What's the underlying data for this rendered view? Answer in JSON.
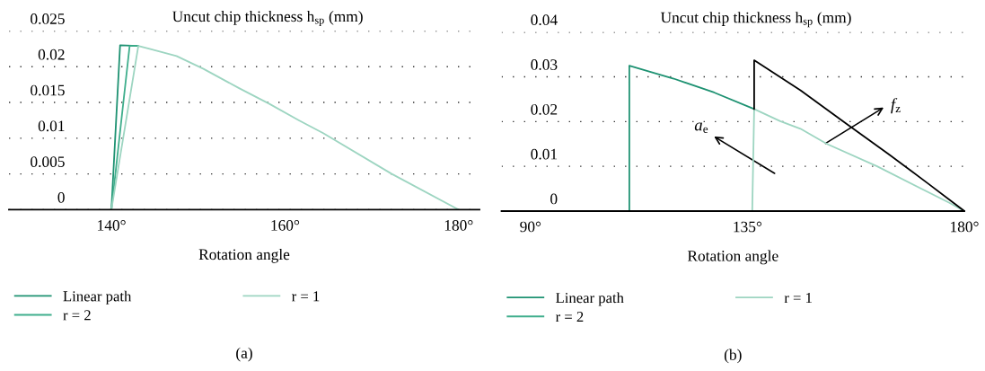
{
  "chart_data": [
    {
      "type": "line",
      "title": "(a)",
      "ylabel": "Uncut chip thickness h$_{sp}$ (mm)",
      "xlabel": "Rotation angle",
      "xlim": [
        128.2,
        182.4
      ],
      "xticks": [
        {
          "value": 140,
          "label": "140°"
        },
        {
          "value": 160,
          "label": "160°"
        },
        {
          "value": 180,
          "label": "180°"
        }
      ],
      "ylim": [
        0,
        0.025
      ],
      "yticks": [
        0,
        0.005,
        0.01,
        0.015,
        0.02,
        0.025
      ],
      "grid": "y",
      "legend": "bottom",
      "series": [
        {
          "name": "Linear path",
          "color": "#1e9272",
          "x": [
            140,
            141,
            143.1
          ],
          "values": [
            0,
            0.023,
            0.0229
          ]
        },
        {
          "name": "r = 2",
          "color": "#3fae8c",
          "x": [
            140,
            142.1,
            143.1
          ],
          "values": [
            0,
            0.0229,
            0.0229
          ]
        },
        {
          "name": "r = 1",
          "color": "#9dd5c1",
          "x": [
            140,
            143.1,
            144.4,
            147.5,
            150.6,
            154.7,
            158.2,
            161.6,
            164.4,
            172.3,
            180
          ],
          "values": [
            0,
            0.0229,
            0.0225,
            0.0215,
            0.0197,
            0.017,
            0.0148,
            0.0125,
            0.0107,
            0.005,
            0
          ]
        }
      ]
    },
    {
      "type": "line",
      "title": "(b)",
      "ylabel": "Uncut chip thickness h$_{sp}$ (mm)",
      "xlabel": "Rotation angle",
      "xlim": [
        84,
        180
      ],
      "xticks": [
        {
          "value": 90,
          "label": "90°"
        },
        {
          "value": 135,
          "label": "135°"
        },
        {
          "value": 180,
          "label": "180°"
        }
      ],
      "ylim": [
        0,
        0.04
      ],
      "yticks": [
        0,
        0.01,
        0.02,
        0.03,
        0.04
      ],
      "grid": "y",
      "legend": "bottom",
      "annotations": [
        "a$_{e}$",
        {
          "text": "f$_{z}$",
          "x": 157.2,
          "y": 0.0183
        }
      ],
      "series": [
        {
          "name": "Linear path",
          "color": "#1e9272",
          "x": [
            110.5,
            110.5,
            119.7,
            128.1,
            136.4
          ],
          "values": [
            0,
            0.0325,
            0.0296,
            0.0265,
            0.0228
          ]
        },
        {
          "name": "r = 2",
          "color": "#3fae8c"
        },
        {
          "name": "r = 1",
          "color": "#9dd5c1",
          "x": [
            136.0,
            136.4,
            141.8,
            146,
            151.5,
            161.9,
            176.8,
            180
          ],
          "values": [
            0,
            0.0228,
            0.0201,
            0.0184,
            0.015,
            0.01,
            0.0019,
            0
          ]
        },
        {
          "color": "#000000",
          "x": [
            136.4,
            136.4,
            146,
            155.4,
            164.2,
            172.3,
            180
          ],
          "values": [
            0.0228,
            0.0337,
            0.027,
            0.0196,
            0.0128,
            0.0063,
            0
          ]
        }
      ]
    }
  ]
}
